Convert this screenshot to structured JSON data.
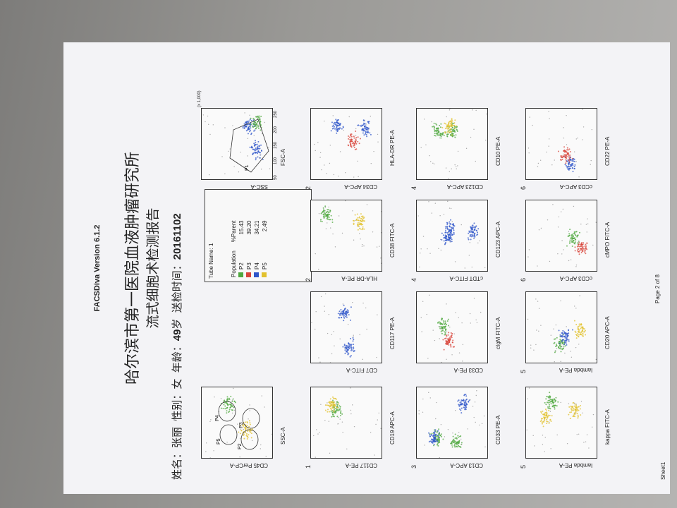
{
  "header": {
    "software": "FACSDiva Version 6.1.2",
    "institution": "哈尔滨市第一医院血液肿瘤研究所",
    "report_title": "流式细胞术检测报告",
    "patient": [
      "姓名：张丽",
      "性别：女",
      "年龄：",
      "49",
      "岁",
      "送检时间：",
      "20161102"
    ]
  },
  "gating": {
    "cd45_plot": {
      "y_label": "CD45 PerCP-A",
      "x_label": "SSC-A"
    },
    "fsc_plot": {
      "y_label": "SSC-A",
      "x_label": "FSC-A",
      "gate": "P1",
      "axis_ticks": [
        "50",
        "100",
        "150",
        "200",
        "250"
      ],
      "axis_scale": "(x 1,000)"
    }
  },
  "table": {
    "tube": "Tube Name:  1",
    "columns": [
      "Population",
      "%Parent"
    ],
    "rows": [
      [
        "P2",
        "15.43"
      ],
      [
        "P3",
        "39.20"
      ],
      [
        "P4",
        "34.21"
      ],
      [
        "P5",
        "2.49"
      ]
    ]
  },
  "plots": [
    {
      "number": "1",
      "y_label": "CD117 PE-A",
      "x_label": "CD19 APC-A"
    },
    {
      "y_label": "CD7 FITC-A",
      "x_label": "CD117 PE-A"
    },
    {
      "number": "2",
      "y_label": "HLA-DR PE-A",
      "x_label": "CD38 FITC-A"
    },
    {
      "number": "2",
      "y_label": "CD34 APC-A",
      "x_label": "HLA-DR PE-A"
    },
    {
      "number": "3",
      "y_label": "CD13 APC-A",
      "x_label": "CD33 PE-A"
    },
    {
      "y_label": "CD33 PE-A",
      "x_label": "cIgM FITC-A"
    },
    {
      "number": "4",
      "y_label": "cTDT FITC-A",
      "x_label": "CD123 APC-A"
    },
    {
      "number": "4",
      "y_label": "CD123 APC-A",
      "x_label": "CD10 PE-A"
    },
    {
      "number": "5",
      "y_label": "lambda PE-A",
      "x_label": "kappa FITC-A"
    },
    {
      "number": "5",
      "y_label": "lambda PE-A",
      "x_label": "CD20 APC-A"
    },
    {
      "number": "6",
      "y_label": "cCD3 APC-A",
      "x_label": "cMPO FITC-A"
    },
    {
      "number": "6",
      "y_label": "cCD3 APC-A",
      "x_label": "CD22 PE-A"
    }
  ],
  "footer": {
    "page": "Page 2 of 8",
    "sheet": "Sheet1"
  }
}
